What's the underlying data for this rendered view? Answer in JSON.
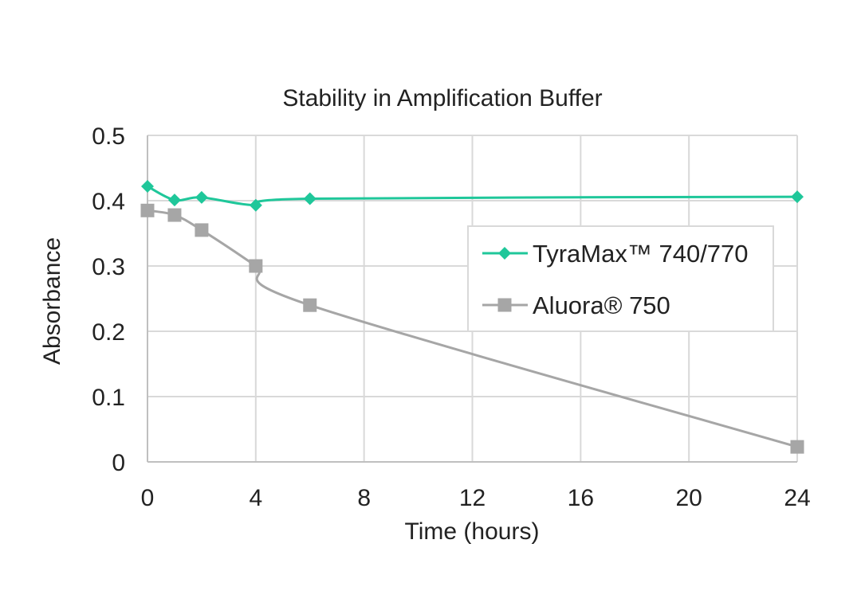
{
  "chart_data": {
    "type": "line",
    "title": "Stability in Amplification Buffer",
    "xlabel": "Time (hours)",
    "ylabel": "Absorbance",
    "xlim": [
      0,
      24
    ],
    "ylim": [
      0,
      0.5
    ],
    "x_ticks": [
      0,
      4,
      8,
      12,
      16,
      20,
      24
    ],
    "y_ticks": [
      0,
      0.1,
      0.2,
      0.3,
      0.4,
      0.5
    ],
    "x_tick_labels": [
      "0",
      "4",
      "8",
      "12",
      "16",
      "20",
      "24"
    ],
    "y_tick_labels": [
      "0",
      "0.1",
      "0.2",
      "0.3",
      "0.4",
      "0.5"
    ],
    "grid": true,
    "legend_position": "right",
    "series": [
      {
        "name": "TyraMax™ 740/770",
        "color": "#1fc79a",
        "marker": "diamond",
        "x": [
          0,
          1,
          2,
          4,
          6,
          24
        ],
        "values": [
          0.422,
          0.401,
          0.405,
          0.393,
          0.403,
          0.406
        ]
      },
      {
        "name": "Aluora® 750",
        "color": "#a6a6a6",
        "marker": "square",
        "x": [
          0,
          1,
          2,
          4,
          6,
          24
        ],
        "values": [
          0.385,
          0.378,
          0.355,
          0.3,
          0.24,
          0.023
        ]
      }
    ]
  }
}
